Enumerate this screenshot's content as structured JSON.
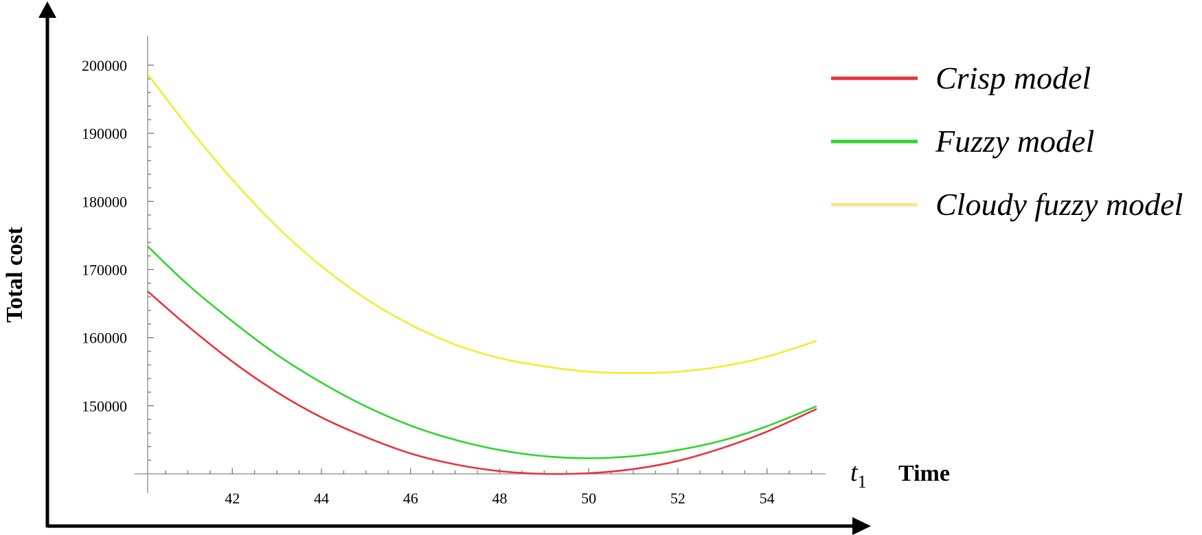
{
  "chart_data": {
    "type": "line",
    "ylabel": "Total cost",
    "xlabel": "Time",
    "x_variable": {
      "symbol": "t",
      "subscript": "1"
    },
    "xlim": [
      40.1,
      55.1
    ],
    "ylim": [
      140000,
      201000
    ],
    "x_ticks": [
      42,
      44,
      46,
      48,
      50,
      52,
      54
    ],
    "y_ticks": [
      150000,
      160000,
      170000,
      180000,
      190000,
      200000
    ],
    "legend_position": "top-right",
    "grid": false,
    "series": [
      {
        "name": "Crisp model",
        "color": "#e8323c",
        "x": [
          40.1,
          41,
          42,
          43,
          44,
          45,
          46,
          47,
          48,
          49,
          50,
          51,
          52,
          53,
          54,
          55.1
        ],
        "values": [
          166800,
          161700,
          156500,
          152000,
          148300,
          145400,
          143000,
          141400,
          140400,
          140000,
          140100,
          140700,
          141900,
          143800,
          146200,
          149500
        ]
      },
      {
        "name": "Fuzzy model",
        "color": "#2ed52e",
        "x": [
          40.1,
          41,
          42,
          43,
          44,
          45,
          46,
          47,
          48,
          49,
          50,
          51,
          52,
          53,
          54,
          55.1
        ],
        "values": [
          173400,
          167800,
          162400,
          157500,
          153400,
          149900,
          147100,
          145000,
          143500,
          142600,
          142300,
          142600,
          143500,
          144900,
          147000,
          149900
        ]
      },
      {
        "name": "Cloudy fuzzy model",
        "color": "#f2ec2e",
        "legend_color": "#fbe28a",
        "x": [
          40.1,
          41,
          42,
          43,
          44,
          45,
          46,
          47,
          48,
          49,
          50,
          51,
          52,
          53,
          54,
          55.1
        ],
        "values": [
          198700,
          191000,
          183200,
          176300,
          170500,
          165700,
          161900,
          159000,
          157000,
          155800,
          155000,
          154800,
          155000,
          155800,
          157200,
          159500
        ]
      }
    ]
  }
}
